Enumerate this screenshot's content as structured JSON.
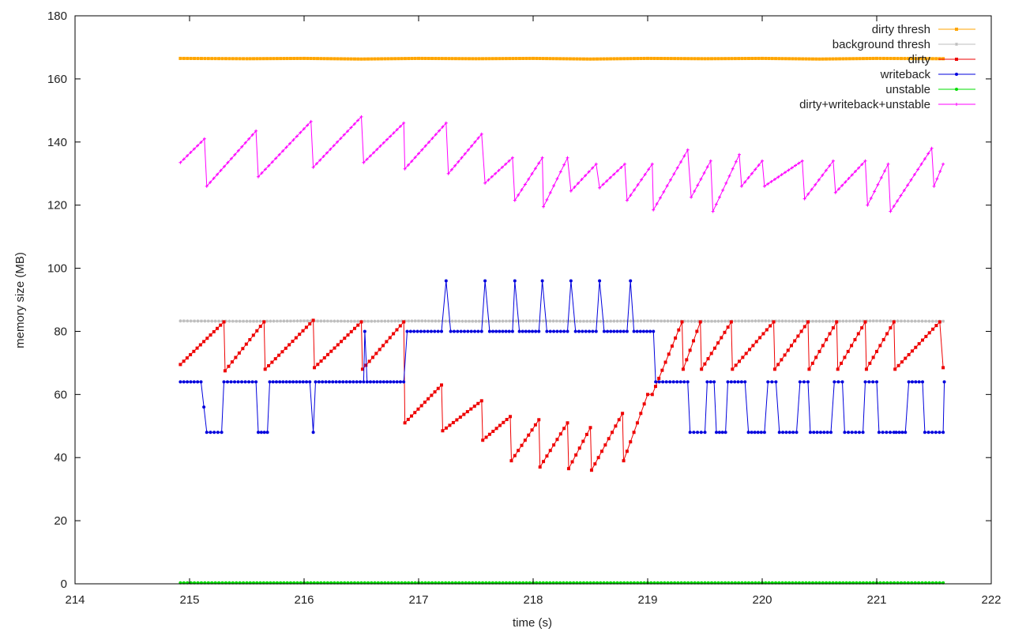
{
  "chart_data": {
    "type": "line",
    "xlabel": "time (s)",
    "ylabel": "memory size (MB)",
    "xlim": [
      214,
      222
    ],
    "ylim": [
      0,
      180
    ],
    "x_ticks": [
      214,
      215,
      216,
      217,
      218,
      219,
      220,
      221,
      222
    ],
    "y_ticks": [
      0,
      20,
      40,
      60,
      80,
      100,
      120,
      140,
      160,
      180
    ],
    "grid": false,
    "legend_position": "top-right",
    "series": [
      {
        "name": "dirty thresh",
        "color": "#ffa500",
        "marker": "square",
        "points": [
          [
            214.92,
            166.5
          ],
          [
            215.5,
            166.4
          ],
          [
            216.0,
            166.5
          ],
          [
            216.5,
            166.3
          ],
          [
            217.0,
            166.5
          ],
          [
            217.5,
            166.4
          ],
          [
            218.0,
            166.5
          ],
          [
            218.5,
            166.3
          ],
          [
            219.0,
            166.5
          ],
          [
            219.5,
            166.4
          ],
          [
            220.0,
            166.5
          ],
          [
            220.5,
            166.3
          ],
          [
            221.0,
            166.5
          ],
          [
            221.58,
            166.4
          ]
        ]
      },
      {
        "name": "background thresh",
        "color": "#bebebe",
        "marker": "star",
        "points": [
          [
            214.92,
            83.3
          ],
          [
            215.5,
            83.2
          ],
          [
            216.0,
            83.3
          ],
          [
            216.5,
            83.2
          ],
          [
            217.0,
            83.3
          ],
          [
            217.5,
            83.2
          ],
          [
            218.0,
            83.3
          ],
          [
            218.5,
            83.2
          ],
          [
            219.0,
            83.3
          ],
          [
            219.5,
            83.2
          ],
          [
            220.0,
            83.3
          ],
          [
            220.5,
            83.2
          ],
          [
            221.0,
            83.3
          ],
          [
            221.58,
            83.2
          ]
        ]
      },
      {
        "name": "dirty",
        "color": "#ee0000",
        "marker": "square",
        "points": [
          [
            214.92,
            69.5
          ],
          [
            215.3,
            83
          ],
          [
            215.31,
            67.5
          ],
          [
            215.65,
            83
          ],
          [
            215.66,
            68
          ],
          [
            216.08,
            83.5
          ],
          [
            216.09,
            68.5
          ],
          [
            216.5,
            83
          ],
          [
            216.51,
            68
          ],
          [
            216.87,
            83
          ],
          [
            216.88,
            51
          ],
          [
            217.2,
            63
          ],
          [
            217.21,
            48.5
          ],
          [
            217.55,
            58
          ],
          [
            217.56,
            45.5
          ],
          [
            217.8,
            53
          ],
          [
            217.81,
            39
          ],
          [
            218.05,
            52
          ],
          [
            218.06,
            37
          ],
          [
            218.3,
            51
          ],
          [
            218.31,
            36.5
          ],
          [
            218.5,
            49.5
          ],
          [
            218.51,
            36
          ],
          [
            218.78,
            54
          ],
          [
            218.79,
            39
          ],
          [
            219.0,
            60
          ],
          [
            219.04,
            60
          ],
          [
            219.3,
            83
          ],
          [
            219.31,
            68
          ],
          [
            219.46,
            83
          ],
          [
            219.47,
            68
          ],
          [
            219.73,
            83
          ],
          [
            219.74,
            68
          ],
          [
            220.1,
            83
          ],
          [
            220.11,
            68
          ],
          [
            220.4,
            83
          ],
          [
            220.41,
            68
          ],
          [
            220.65,
            83
          ],
          [
            220.66,
            68
          ],
          [
            220.9,
            83
          ],
          [
            220.91,
            68
          ],
          [
            221.15,
            83
          ],
          [
            221.16,
            68
          ],
          [
            221.55,
            83
          ],
          [
            221.58,
            68.5
          ]
        ]
      },
      {
        "name": "writeback",
        "color": "#0000dd",
        "marker": "circle",
        "points": [
          [
            214.92,
            64
          ],
          [
            215.1,
            64
          ],
          [
            215.15,
            48
          ],
          [
            215.28,
            48
          ],
          [
            215.3,
            64
          ],
          [
            215.58,
            64
          ],
          [
            215.6,
            48
          ],
          [
            215.68,
            48
          ],
          [
            215.7,
            64
          ],
          [
            216.05,
            64
          ],
          [
            216.08,
            48
          ],
          [
            216.1,
            64
          ],
          [
            216.52,
            64
          ],
          [
            216.53,
            80
          ],
          [
            216.55,
            64
          ],
          [
            216.87,
            64
          ],
          [
            216.9,
            80
          ],
          [
            217.2,
            80
          ],
          [
            217.24,
            96
          ],
          [
            217.28,
            80
          ],
          [
            217.55,
            80
          ],
          [
            217.58,
            96
          ],
          [
            217.62,
            80
          ],
          [
            217.82,
            80
          ],
          [
            217.84,
            96
          ],
          [
            217.88,
            80
          ],
          [
            218.05,
            80
          ],
          [
            218.08,
            96
          ],
          [
            218.12,
            80
          ],
          [
            218.3,
            80
          ],
          [
            218.33,
            96
          ],
          [
            218.37,
            80
          ],
          [
            218.55,
            80
          ],
          [
            218.58,
            96
          ],
          [
            218.62,
            80
          ],
          [
            218.82,
            80
          ],
          [
            218.85,
            96
          ],
          [
            218.88,
            80
          ],
          [
            219.05,
            80
          ],
          [
            219.07,
            64
          ],
          [
            219.35,
            64
          ],
          [
            219.37,
            48
          ],
          [
            219.5,
            48
          ],
          [
            219.52,
            64
          ],
          [
            219.58,
            64
          ],
          [
            219.6,
            48
          ],
          [
            219.68,
            48
          ],
          [
            219.7,
            64
          ],
          [
            219.85,
            64
          ],
          [
            219.88,
            48
          ],
          [
            220.02,
            48
          ],
          [
            220.05,
            64
          ],
          [
            220.12,
            64
          ],
          [
            220.15,
            48
          ],
          [
            220.3,
            48
          ],
          [
            220.33,
            64
          ],
          [
            220.4,
            64
          ],
          [
            220.42,
            48
          ],
          [
            220.6,
            48
          ],
          [
            220.63,
            64
          ],
          [
            220.7,
            64
          ],
          [
            220.72,
            48
          ],
          [
            220.88,
            48
          ],
          [
            220.9,
            64
          ],
          [
            221.0,
            64
          ],
          [
            221.02,
            48
          ],
          [
            221.15,
            48
          ],
          [
            221.17,
            48
          ],
          [
            221.25,
            48
          ],
          [
            221.28,
            64
          ],
          [
            221.4,
            64
          ],
          [
            221.42,
            48
          ],
          [
            221.58,
            48
          ],
          [
            221.59,
            64
          ]
        ]
      },
      {
        "name": "unstable",
        "color": "#00dd00",
        "marker": "circle",
        "points": [
          [
            214.92,
            0.3
          ],
          [
            215.5,
            0.3
          ],
          [
            216.0,
            0.3
          ],
          [
            216.5,
            0.3
          ],
          [
            217.0,
            0.3
          ],
          [
            217.5,
            0.3
          ],
          [
            218.0,
            0.3
          ],
          [
            218.5,
            0.3
          ],
          [
            219.0,
            0.3
          ],
          [
            219.5,
            0.3
          ],
          [
            220.0,
            0.3
          ],
          [
            220.5,
            0.3
          ],
          [
            221.0,
            0.3
          ],
          [
            221.58,
            0.3
          ]
        ]
      },
      {
        "name": "dirty+writeback+unstable",
        "color": "#ff00ff",
        "marker": "plus",
        "points": [
          [
            214.92,
            133.5
          ],
          [
            215.13,
            141
          ],
          [
            215.15,
            126
          ],
          [
            215.58,
            143.5
          ],
          [
            215.6,
            129
          ],
          [
            216.06,
            146.5
          ],
          [
            216.08,
            132
          ],
          [
            216.5,
            148
          ],
          [
            216.52,
            133.5
          ],
          [
            216.87,
            146
          ],
          [
            216.88,
            131.5
          ],
          [
            217.24,
            146
          ],
          [
            217.26,
            130
          ],
          [
            217.55,
            142.5
          ],
          [
            217.58,
            127
          ],
          [
            217.82,
            135
          ],
          [
            217.84,
            121.5
          ],
          [
            218.08,
            135
          ],
          [
            218.09,
            119.5
          ],
          [
            218.3,
            135
          ],
          [
            218.33,
            124.5
          ],
          [
            218.55,
            133
          ],
          [
            218.58,
            125.5
          ],
          [
            218.8,
            133
          ],
          [
            218.82,
            121.5
          ],
          [
            219.04,
            133
          ],
          [
            219.05,
            118.5
          ],
          [
            219.35,
            137.5
          ],
          [
            219.38,
            122.5
          ],
          [
            219.55,
            134
          ],
          [
            219.57,
            118
          ],
          [
            219.8,
            136
          ],
          [
            219.82,
            126
          ],
          [
            220.0,
            134
          ],
          [
            220.02,
            126
          ],
          [
            220.35,
            134
          ],
          [
            220.37,
            122
          ],
          [
            220.62,
            134
          ],
          [
            220.64,
            124
          ],
          [
            220.9,
            134
          ],
          [
            220.92,
            120
          ],
          [
            221.1,
            133
          ],
          [
            221.12,
            118
          ],
          [
            221.48,
            138
          ],
          [
            221.5,
            126
          ],
          [
            221.58,
            133
          ]
        ]
      }
    ]
  }
}
